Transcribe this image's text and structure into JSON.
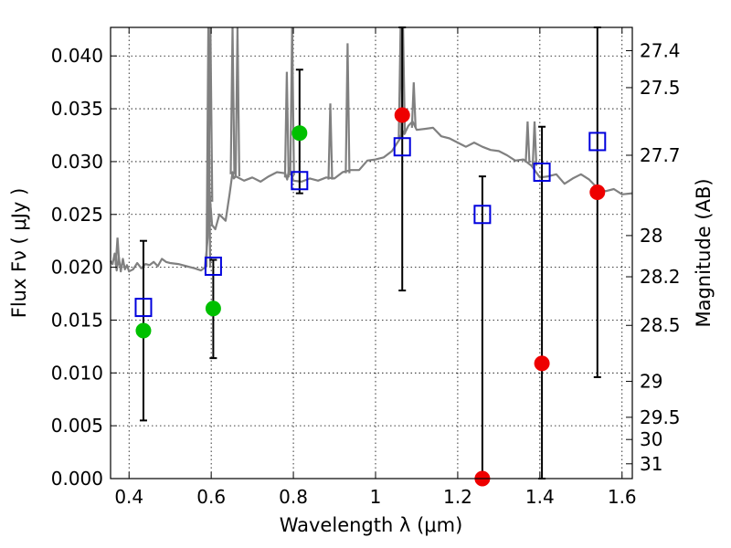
{
  "chart_data": {
    "type": "scatter",
    "xlabel": "Wavelength  λ (μm)",
    "ylabel": "Flux  Fν  ( μJy )",
    "ylabel_right": "Magnitude (AB)",
    "xlim": [
      0.355,
      1.625
    ],
    "ylim": [
      0.0,
      0.0427
    ],
    "x_ticks": [
      {
        "value": 0.4,
        "label": "0.4"
      },
      {
        "value": 0.6,
        "label": "0.6"
      },
      {
        "value": 0.8,
        "label": "0.8"
      },
      {
        "value": 1.0,
        "label": "1"
      },
      {
        "value": 1.2,
        "label": "1.2"
      },
      {
        "value": 1.4,
        "label": "1.4"
      },
      {
        "value": 1.6,
        "label": "1.6"
      }
    ],
    "y_ticks": [
      {
        "value": 0.0,
        "label": "0.000"
      },
      {
        "value": 0.005,
        "label": "0.005"
      },
      {
        "value": 0.01,
        "label": "0.010"
      },
      {
        "value": 0.015,
        "label": "0.015"
      },
      {
        "value": 0.02,
        "label": "0.020"
      },
      {
        "value": 0.025,
        "label": "0.025"
      },
      {
        "value": 0.03,
        "label": "0.030"
      },
      {
        "value": 0.035,
        "label": "0.035"
      },
      {
        "value": 0.04,
        "label": "0.040"
      }
    ],
    "right_ticks": [
      {
        "flux": 0.0405,
        "label": "27.4"
      },
      {
        "flux": 0.037,
        "label": "27.5"
      },
      {
        "flux": 0.0306,
        "label": "27.7"
      },
      {
        "flux": 0.023,
        "label": "28"
      },
      {
        "flux": 0.0191,
        "label": "28.2"
      },
      {
        "flux": 0.0145,
        "label": "28.5"
      },
      {
        "flux": 0.0092,
        "label": "29"
      },
      {
        "flux": 0.0058,
        "label": "29.5"
      },
      {
        "flux": 0.0037,
        "label": "30"
      },
      {
        "flux": 0.0014,
        "label": "31"
      }
    ],
    "series": [
      {
        "name": "model-spectrum",
        "kind": "line",
        "color": "#808080",
        "x": [
          0.355,
          0.36,
          0.365,
          0.37,
          0.375,
          0.38,
          0.385,
          0.39,
          0.395,
          0.4,
          0.41,
          0.42,
          0.43,
          0.44,
          0.45,
          0.46,
          0.47,
          0.48,
          0.49,
          0.5,
          0.52,
          0.54,
          0.56,
          0.575,
          0.585,
          0.592,
          0.595,
          0.598,
          0.602,
          0.61,
          0.62,
          0.635,
          0.645,
          0.652,
          0.655,
          0.66,
          0.68,
          0.7,
          0.72,
          0.74,
          0.76,
          0.78,
          0.785,
          0.79,
          0.8,
          0.82,
          0.84,
          0.86,
          0.88,
          0.9,
          0.92,
          0.94,
          0.96,
          0.98,
          1.0,
          1.02,
          1.04,
          1.05,
          1.06,
          1.065,
          1.07,
          1.08,
          1.09,
          1.1,
          1.12,
          1.14,
          1.16,
          1.18,
          1.2,
          1.22,
          1.24,
          1.26,
          1.28,
          1.3,
          1.32,
          1.34,
          1.36,
          1.38,
          1.4,
          1.42,
          1.44,
          1.46,
          1.48,
          1.5,
          1.52,
          1.54,
          1.56,
          1.58,
          1.6,
          1.625
        ],
        "y": [
          0.0206,
          0.0203,
          0.0213,
          0.0197,
          0.021,
          0.0196,
          0.0208,
          0.0198,
          0.0202,
          0.0196,
          0.0198,
          0.0204,
          0.0199,
          0.0203,
          0.0202,
          0.0205,
          0.0201,
          0.0208,
          0.0205,
          0.0204,
          0.0203,
          0.0201,
          0.0199,
          0.0197,
          0.02,
          0.023,
          0.028,
          0.026,
          0.024,
          0.0236,
          0.025,
          0.0244,
          0.027,
          0.029,
          0.0284,
          0.0286,
          0.0282,
          0.0285,
          0.0281,
          0.0286,
          0.029,
          0.0289,
          0.0283,
          0.0294,
          0.0282,
          0.0281,
          0.0284,
          0.0282,
          0.0285,
          0.0284,
          0.029,
          0.0292,
          0.0292,
          0.0301,
          0.0302,
          0.0304,
          0.031,
          0.0316,
          0.0322,
          0.033,
          0.0326,
          0.0334,
          0.0338,
          0.033,
          0.0331,
          0.0332,
          0.0324,
          0.0322,
          0.0318,
          0.0314,
          0.0318,
          0.0314,
          0.0311,
          0.031,
          0.0306,
          0.0301,
          0.0302,
          0.0296,
          0.0285,
          0.0286,
          0.0288,
          0.0279,
          0.0284,
          0.0288,
          0.0283,
          0.0275,
          0.0272,
          0.0274,
          0.0269,
          0.027
        ]
      },
      {
        "name": "spectrum-emission-lines",
        "kind": "spikes",
        "color": "#808080",
        "lines": [
          {
            "x": 0.372,
            "top": 0.0228,
            "base": 0.0202
          },
          {
            "x": 0.593,
            "top": 0.0427,
            "base": 0.02
          },
          {
            "x": 0.598,
            "top": 0.0427,
            "base": 0.0262
          },
          {
            "x": 0.652,
            "top": 0.0427,
            "base": 0.0288
          },
          {
            "x": 0.664,
            "top": 0.0427,
            "base": 0.0286
          },
          {
            "x": 0.784,
            "top": 0.0385,
            "base": 0.0285
          },
          {
            "x": 0.797,
            "top": 0.0427,
            "base": 0.0287
          },
          {
            "x": 0.89,
            "top": 0.0355,
            "base": 0.0283
          },
          {
            "x": 0.932,
            "top": 0.0412,
            "base": 0.0289
          },
          {
            "x": 1.061,
            "top": 0.0427,
            "base": 0.0322
          },
          {
            "x": 1.067,
            "top": 0.0427,
            "base": 0.0326
          },
          {
            "x": 1.093,
            "top": 0.0375,
            "base": 0.0332
          },
          {
            "x": 1.37,
            "top": 0.0338,
            "base": 0.0299
          },
          {
            "x": 1.387,
            "top": 0.0338,
            "base": 0.0296
          }
        ]
      },
      {
        "name": "detections",
        "kind": "markers",
        "marker": "circle",
        "color": "#00c000",
        "points": [
          {
            "x": 0.435,
            "y": 0.014
          },
          {
            "x": 0.605,
            "y": 0.0161
          },
          {
            "x": 0.815,
            "y": 0.0327
          }
        ]
      },
      {
        "name": "upper-limits",
        "kind": "markers",
        "marker": "circle",
        "color": "#ee0000",
        "points": [
          {
            "x": 1.065,
            "y": 0.0344
          },
          {
            "x": 1.26,
            "y": 0.0
          },
          {
            "x": 1.405,
            "y": 0.0109
          },
          {
            "x": 1.54,
            "y": 0.0271
          }
        ]
      },
      {
        "name": "model-photometry",
        "kind": "markers",
        "marker": "square",
        "color": "#0000dd",
        "points": [
          {
            "x": 0.435,
            "y": 0.0162
          },
          {
            "x": 0.605,
            "y": 0.0201
          },
          {
            "x": 0.815,
            "y": 0.0282
          },
          {
            "x": 1.065,
            "y": 0.0314
          },
          {
            "x": 1.26,
            "y": 0.025
          },
          {
            "x": 1.405,
            "y": 0.029
          },
          {
            "x": 1.54,
            "y": 0.0319
          }
        ]
      }
    ],
    "error_bars": [
      {
        "x": 0.435,
        "lo": 0.0055,
        "hi": 0.0225
      },
      {
        "x": 0.605,
        "lo": 0.0114,
        "hi": 0.0207
      },
      {
        "x": 0.815,
        "lo": 0.027,
        "hi": 0.0387
      },
      {
        "x": 1.065,
        "lo": 0.0178,
        "hi": 0.0427
      },
      {
        "x": 1.26,
        "lo": 0.0,
        "hi": 0.0286
      },
      {
        "x": 1.405,
        "lo": 0.0,
        "hi": 0.0333
      },
      {
        "x": 1.54,
        "lo": 0.0096,
        "hi": 0.0427
      }
    ],
    "grid": true,
    "legend": "none"
  }
}
